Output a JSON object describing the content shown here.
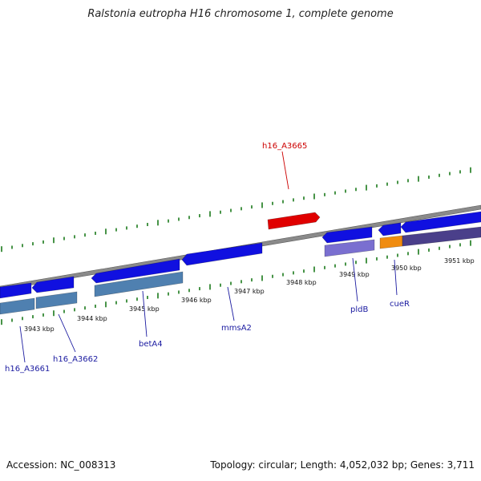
{
  "title": "Ralstonia eutropha H16 chromosome 1, complete genome",
  "footer": {
    "accession": "Accession: NC_008313",
    "summary": "Topology: circular; Length: 4,052,032 bp; Genes: 3,711"
  },
  "colors": {
    "backbone": "#808080",
    "tick": "#1a7a1a",
    "gene_forward": "#1010e0",
    "gene_highlight": "#e00000",
    "cds_steel": "#4f80b0",
    "cds_lavender": "#7a6fd0",
    "cds_orange": "#f08c10",
    "cds_dark": "#4a3f8a",
    "label_blue": "#1a1aa0",
    "label_red": "#cc0000"
  },
  "scale_labels": [
    "3943 kbp",
    "3944 kbp",
    "3945 kbp",
    "3946 kbp",
    "3947 kbp",
    "3948 kbp",
    "3949 kbp",
    "3950 kbp",
    "3951 kbp"
  ],
  "gene_labels": {
    "h16_A3665": "h16_A3665",
    "h16_A3661": "h16_A3661",
    "h16_A3662": "h16_A3662",
    "betA4": "betA4",
    "mmsA2": "mmsA2",
    "pldB": "pldB",
    "cueR": "cueR"
  }
}
